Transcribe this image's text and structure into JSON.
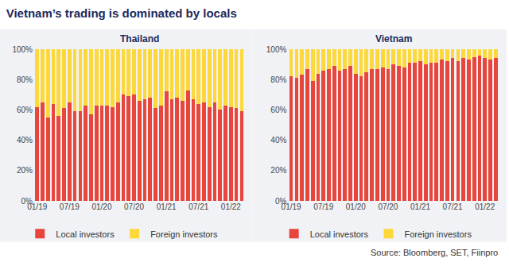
{
  "title": "Vietnam’s trading is dominated by locals",
  "source": "Source: Bloomberg, SET, Fiinpro",
  "chart_data": [
    {
      "type": "bar",
      "title": "Thailand",
      "stacked": true,
      "grid": false,
      "legend": "bottom",
      "categories": [
        "01/19",
        null,
        null,
        null,
        null,
        null,
        "07/19",
        null,
        null,
        null,
        null,
        null,
        "01/20",
        null,
        null,
        null,
        null,
        null,
        "07/20",
        null,
        null,
        null,
        null,
        null,
        "01/21",
        null,
        null,
        null,
        null,
        null,
        "07/21",
        null,
        null,
        null,
        null,
        null,
        "01/22",
        null,
        null
      ],
      "series": [
        {
          "name": "Local investors",
          "color": "#e8453c",
          "values": [
            62,
            65,
            55,
            64,
            56,
            61,
            65,
            59,
            59,
            63,
            57,
            63,
            63,
            63,
            62,
            65,
            70,
            69,
            70,
            66,
            67,
            68,
            61,
            63,
            72,
            67,
            68,
            66,
            73,
            67,
            64,
            65,
            62,
            65,
            60,
            63,
            62,
            61,
            59
          ]
        },
        {
          "name": "Foreign investors",
          "color": "#fdd83a",
          "values": [
            38,
            35,
            45,
            36,
            44,
            39,
            35,
            41,
            41,
            37,
            43,
            37,
            37,
            37,
            38,
            35,
            30,
            31,
            30,
            34,
            33,
            32,
            39,
            37,
            28,
            33,
            32,
            34,
            27,
            33,
            36,
            35,
            38,
            35,
            40,
            37,
            38,
            39,
            41
          ]
        }
      ],
      "ylim": [
        0,
        100
      ],
      "yticks": [
        {
          "value": 0,
          "label": "0%"
        },
        {
          "value": 20,
          "label": "20%"
        },
        {
          "value": 40,
          "label": "40%"
        },
        {
          "value": 60,
          "label": "60%"
        },
        {
          "value": 80,
          "label": "80%"
        },
        {
          "value": 100,
          "label": "100%"
        }
      ]
    },
    {
      "type": "bar",
      "title": "Vietnam",
      "stacked": true,
      "grid": false,
      "legend": "bottom",
      "categories": [
        "01/19",
        null,
        null,
        null,
        null,
        null,
        "07/19",
        null,
        null,
        null,
        null,
        null,
        "01/20",
        null,
        null,
        null,
        null,
        null,
        "07/20",
        null,
        null,
        null,
        null,
        null,
        "01/21",
        null,
        null,
        null,
        null,
        null,
        "07/21",
        null,
        null,
        null,
        null,
        null,
        "01/22",
        null,
        null
      ],
      "series": [
        {
          "name": "Local investors",
          "color": "#e8453c",
          "values": [
            82,
            81,
            83,
            87,
            79,
            84,
            86,
            87,
            89,
            86,
            87,
            89,
            84,
            82,
            85,
            87,
            87,
            88,
            87,
            90,
            89,
            88,
            91,
            91,
            92,
            90,
            91,
            91,
            93,
            92,
            94,
            92,
            94,
            93,
            95,
            96,
            94,
            93,
            94
          ]
        },
        {
          "name": "Foreign investors",
          "color": "#fdd83a",
          "values": [
            18,
            19,
            17,
            13,
            21,
            16,
            14,
            13,
            11,
            14,
            13,
            11,
            16,
            18,
            15,
            13,
            13,
            12,
            13,
            10,
            11,
            12,
            9,
            9,
            8,
            10,
            9,
            9,
            7,
            8,
            6,
            8,
            6,
            7,
            5,
            4,
            6,
            7,
            6
          ]
        }
      ],
      "ylim": [
        0,
        100
      ],
      "yticks": [
        {
          "value": 0,
          "label": "0%"
        },
        {
          "value": 20,
          "label": "20%"
        },
        {
          "value": 40,
          "label": "40%"
        },
        {
          "value": 60,
          "label": "60%"
        },
        {
          "value": 80,
          "label": "80%"
        },
        {
          "value": 100,
          "label": "100%"
        }
      ]
    }
  ]
}
